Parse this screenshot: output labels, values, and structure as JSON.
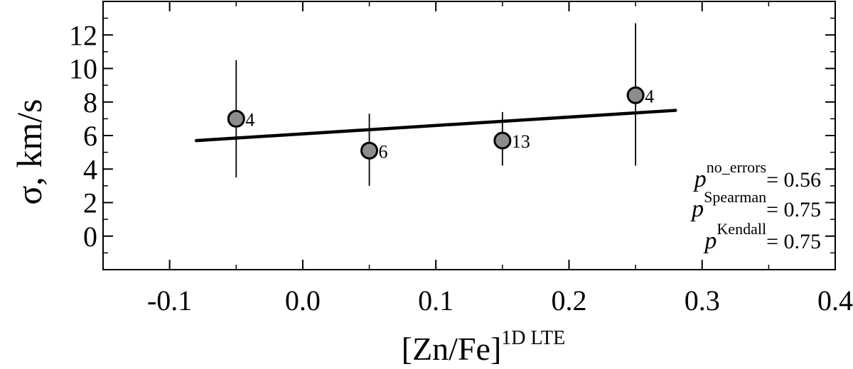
{
  "chart_data": {
    "type": "scatter",
    "xlabel": "[Zn/Fe]",
    "xlabel_sup": "1D LTE",
    "ylabel": "σ, km/s",
    "xlim": [
      -0.15,
      0.4
    ],
    "ylim": [
      -2,
      14
    ],
    "x_ticks": [
      -0.1,
      0.0,
      0.1,
      0.2,
      0.3,
      0.4
    ],
    "x_tick_labels": [
      "-0.1",
      "0.0",
      "0.1",
      "0.2",
      "0.3",
      "0.4"
    ],
    "y_ticks": [
      0,
      2,
      4,
      6,
      8,
      10,
      12
    ],
    "y_tick_labels": [
      "0",
      "2",
      "4",
      "6",
      "8",
      "10",
      "12"
    ],
    "grid": false,
    "points": [
      {
        "x": -0.05,
        "y": 7.0,
        "err_low": 3.5,
        "err_high": 10.5,
        "n": "4"
      },
      {
        "x": 0.05,
        "y": 5.1,
        "err_low": 3.0,
        "err_high": 7.3,
        "n": "6"
      },
      {
        "x": 0.15,
        "y": 5.7,
        "err_low": 4.2,
        "err_high": 7.4,
        "n": "13"
      },
      {
        "x": 0.25,
        "y": 8.4,
        "err_low": 4.2,
        "err_high": 12.7,
        "n": "4"
      }
    ],
    "fit_line": {
      "x": [
        -0.08,
        0.28
      ],
      "y": [
        5.7,
        7.5
      ]
    },
    "annotations": [
      {
        "base": "p",
        "sup": "no_errors",
        "value": "= 0.56"
      },
      {
        "base": "p",
        "sup": "Spearman",
        "value": "= 0.75"
      },
      {
        "base": "p",
        "sup": "Kendall",
        "value": "= 0.75"
      }
    ],
    "colors": {
      "marker_fill": "#8c8c8c",
      "line": "#000000"
    }
  }
}
